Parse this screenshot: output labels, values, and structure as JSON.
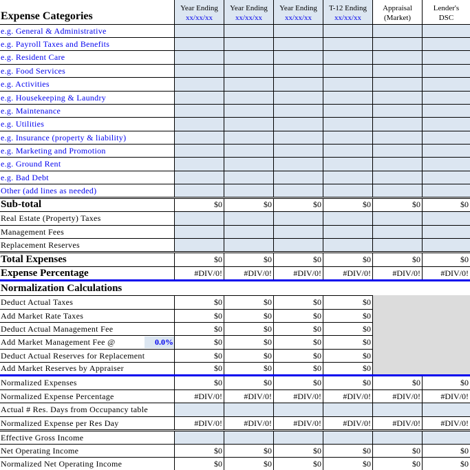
{
  "header": {
    "title": "Expense Categories",
    "columns": [
      {
        "line1": "Year Ending",
        "line2": "xx/xx/xx",
        "shaded": true
      },
      {
        "line1": "Year Ending",
        "line2": "xx/xx/xx",
        "shaded": true
      },
      {
        "line1": "Year Ending",
        "line2": "xx/xx/xx",
        "shaded": true
      },
      {
        "line1": "T-12 Ending",
        "line2": "xx/xx/xx",
        "shaded": true
      },
      {
        "line1": "Appraisal",
        "line2": "(Market)",
        "shaded": false
      },
      {
        "line1": "Lender's",
        "line2": "DSC",
        "shaded": false
      }
    ]
  },
  "colors": {
    "input_fill": "#dce6f1",
    "accent_blue": "#0000ee",
    "disabled_gray": "#dcdcdc"
  },
  "rows": [
    {
      "label": "e.g. General & Administrative",
      "type": "input",
      "blue_label": true
    },
    {
      "label": "e.g. Payroll Taxes and Benefits",
      "type": "input",
      "blue_label": true
    },
    {
      "label": "e.g. Resident Care",
      "type": "input",
      "blue_label": true
    },
    {
      "label": "e.g. Food Services",
      "type": "input",
      "blue_label": true
    },
    {
      "label": "e.g. Activities",
      "type": "input",
      "blue_label": true
    },
    {
      "label": "e.g. Housekeeping  & Laundry",
      "type": "input",
      "blue_label": true
    },
    {
      "label": "e.g. Maintenance",
      "type": "input",
      "blue_label": true
    },
    {
      "label": "e.g. Utilities",
      "type": "input",
      "blue_label": true
    },
    {
      "label": "e.g. Insurance (property & liability)",
      "type": "input",
      "blue_label": true
    },
    {
      "label": "e.g. Marketing and Promotion",
      "type": "input",
      "blue_label": true
    },
    {
      "label": "e.g. Ground Rent",
      "type": "input",
      "blue_label": true
    },
    {
      "label": "e.g. Bad Debt",
      "type": "input",
      "blue_label": true
    },
    {
      "label": "Other (add lines as needed)",
      "type": "input",
      "blue_label": true
    },
    {
      "label": "Sub-total",
      "type": "values",
      "big": true,
      "values": [
        "$0",
        "$0",
        "$0",
        "$0",
        "$0",
        "$0"
      ]
    },
    {
      "label": "Real Estate (Property) Taxes",
      "type": "input"
    },
    {
      "label": "Management Fees",
      "type": "input"
    },
    {
      "label": "Replacement Reserves",
      "type": "input"
    },
    {
      "label": "Total Expenses",
      "type": "values",
      "big": true,
      "values": [
        "$0",
        "$0",
        "$0",
        "$0",
        "$0",
        "$0"
      ]
    },
    {
      "label": "Expense Percentage",
      "type": "values",
      "big": true,
      "values": [
        "#DIV/0!",
        "#DIV/0!",
        "#DIV/0!",
        "#DIV/0!",
        "#DIV/0!",
        "#DIV/0!"
      ]
    },
    {
      "label": "Normalization Calculations",
      "type": "section",
      "big": true
    },
    {
      "label": "Deduct Actual Taxes",
      "type": "norm",
      "values": [
        "$0",
        "$0",
        "$0",
        "$0"
      ]
    },
    {
      "label": "Add Market Rate Taxes",
      "type": "norm",
      "values": [
        "$0",
        "$0",
        "$0",
        "$0"
      ]
    },
    {
      "label": "Deduct Actual Management Fee",
      "type": "norm",
      "values": [
        "$0",
        "$0",
        "$0",
        "$0"
      ]
    },
    {
      "label": "Add Market Management Fee @",
      "type": "norm",
      "pct": "0.0%",
      "values": [
        "$0",
        "$0",
        "$0",
        "$0"
      ]
    },
    {
      "label": "Deduct Actual Reserves for Replacement",
      "type": "norm",
      "values": [
        "$0",
        "$0",
        "$0",
        "$0"
      ]
    },
    {
      "label": "Add Market Reserves by Appraiser",
      "type": "norm",
      "values": [
        "$0",
        "$0",
        "$0",
        "$0"
      ]
    },
    {
      "label": "Normalized Expenses",
      "type": "values",
      "values": [
        "$0",
        "$0",
        "$0",
        "$0",
        "$0",
        "$0"
      ]
    },
    {
      "label": "Normalized Expense Percentage",
      "type": "values",
      "values": [
        "#DIV/0!",
        "#DIV/0!",
        "#DIV/0!",
        "#DIV/0!",
        "#DIV/0!",
        "#DIV/0!"
      ]
    },
    {
      "label": "Actual # Res. Days from Occupancy table",
      "type": "input"
    },
    {
      "label": "Normalized Expense per Res Day",
      "type": "values",
      "values": [
        "#DIV/0!",
        "#DIV/0!",
        "#DIV/0!",
        "#DIV/0!",
        "#DIV/0!",
        "#DIV/0!"
      ]
    },
    {
      "label": "Effective Gross Income",
      "type": "input"
    },
    {
      "label": "Net Operating Income",
      "type": "values",
      "values": [
        "$0",
        "$0",
        "$0",
        "$0",
        "$0",
        "$0"
      ]
    },
    {
      "label": "Normalized Net Operating Income",
      "type": "values",
      "values": [
        "$0",
        "$0",
        "$0",
        "$0",
        "$0",
        "$0"
      ]
    }
  ]
}
